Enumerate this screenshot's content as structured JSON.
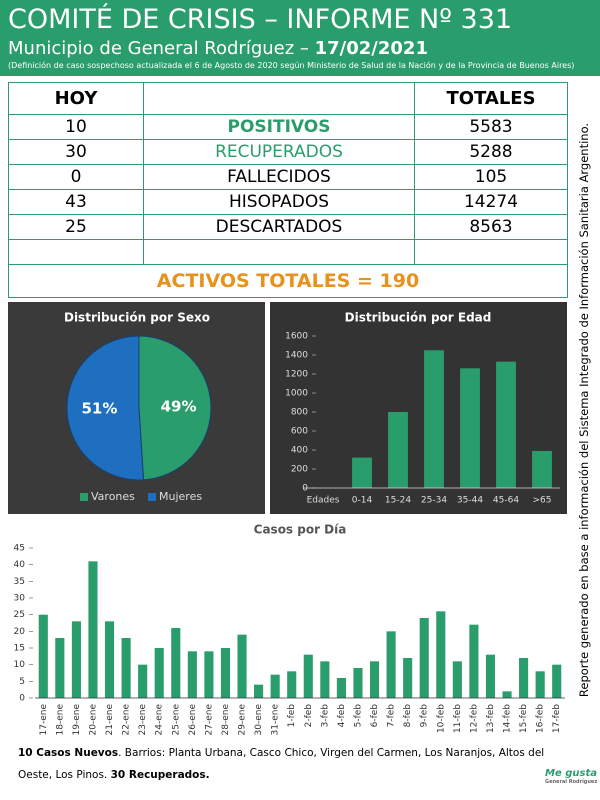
{
  "header": {
    "title": "COMITÉ DE CRISIS – INFORME Nº 331",
    "subtitle": "Municipio de General Rodríguez – ",
    "date": "17/02/2021",
    "note": "(Definición de caso sospechoso actualizada el 6 de Agosto de 2020 según Ministerio de Salud de la Nación y de la Provincia de Buenos Aires)"
  },
  "table": {
    "headers": [
      "HOY",
      "TOTALES"
    ],
    "rows": [
      [
        10,
        "POSITIVOS",
        5583
      ],
      [
        30,
        "RECUPERADOS",
        5288
      ],
      [
        0,
        "FALLECIDOS",
        105
      ],
      [
        43,
        "HISOPADOS",
        14274
      ],
      [
        25,
        "DESCARTADOS",
        8563
      ]
    ],
    "summary": "ACTIVOS TOTALES = 190"
  },
  "chart_data": [
    {
      "type": "pie",
      "title": "Distribución por Sexo",
      "categories": [
        "Varones",
        "Mujeres"
      ],
      "values": [
        49,
        51
      ],
      "value_labels": [
        "49%",
        "51%"
      ],
      "colors": [
        "#2a9d6c",
        "#1f6fc0"
      ]
    },
    {
      "type": "bar",
      "title": "Distribución por Edad",
      "x_label": "Edades",
      "categories": [
        "0-14",
        "15-24",
        "25-34",
        "35-44",
        "45-64",
        ">65"
      ],
      "values": [
        320,
        800,
        1450,
        1260,
        1330,
        390
      ],
      "color": "#2a9d6c",
      "ylim": [
        0,
        1600
      ],
      "yticks": [
        0,
        200,
        400,
        600,
        800,
        1000,
        1200,
        1400,
        1600
      ]
    },
    {
      "type": "bar",
      "title": "Casos por Día",
      "categories": [
        "17-ene",
        "18-ene",
        "19-ene",
        "20-ene",
        "21-ene",
        "22-ene",
        "23-ene",
        "24-ene",
        "25-ene",
        "26-ene",
        "27-ene",
        "28-ene",
        "29-ene",
        "30-ene",
        "31-ene",
        "1-feb",
        "2-feb",
        "3-feb",
        "4-feb",
        "5-feb",
        "6-feb",
        "7-feb",
        "8-feb",
        "9-feb",
        "10-feb",
        "11-feb",
        "12-feb",
        "13-feb",
        "14-feb",
        "15-feb",
        "16-feb",
        "17-feb"
      ],
      "values": [
        25,
        18,
        23,
        41,
        23,
        18,
        10,
        15,
        21,
        14,
        14,
        15,
        19,
        4,
        7,
        8,
        13,
        11,
        6,
        9,
        11,
        20,
        12,
        24,
        26,
        11,
        22,
        13,
        2,
        12,
        8,
        10
      ],
      "color": "#2a9d6c",
      "ylim": [
        0,
        45
      ],
      "yticks": [
        0,
        5,
        10,
        15,
        20,
        25,
        30,
        35,
        40,
        45
      ]
    }
  ],
  "footer": {
    "new_cases": "10 Casos Nuevos",
    "barrios": ". Barrios: Planta Urbana, Casco Chico, Virgen del Carmen, Los Naranjos, Altos del Oeste, Los Pinos.",
    "recovered": "30 Recuperados."
  },
  "side_note": "Reporte generado en base a información del Sistema Integrado de Información Sanitaria Argentino.",
  "logo": {
    "name": "Me gusta",
    "place": "General Rodríguez"
  }
}
